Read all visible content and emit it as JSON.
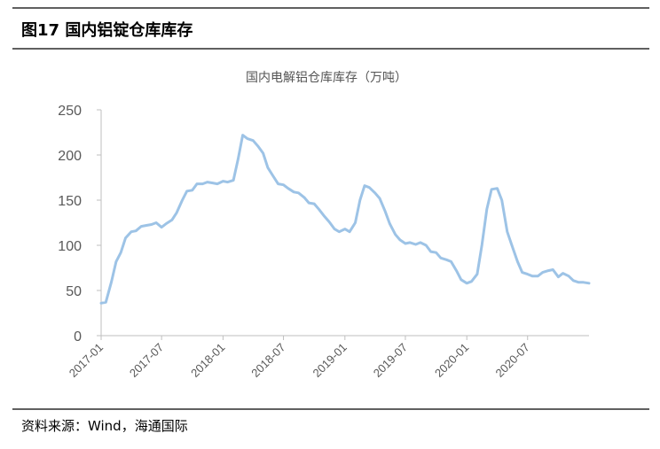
{
  "figure_title": "图17 国内铝锭仓库库存",
  "source_text": "资料来源：Wind，海通国际",
  "chart_data": {
    "type": "line",
    "title": "国内电解铝仓库库存（万吨）",
    "xlabel": "",
    "ylabel": "",
    "ylim": [
      0,
      250
    ],
    "yticks": [
      0,
      50,
      100,
      150,
      200,
      250
    ],
    "xticks": [
      "2017-01",
      "2017-07",
      "2018-01",
      "2018-07",
      "2019-01",
      "2019-07",
      "2020-01",
      "2020-07"
    ],
    "grid": false,
    "legend": "none",
    "line_color": "#9DC3E6",
    "series": [
      {
        "name": "",
        "points": [
          [
            "2017-01",
            36
          ],
          [
            "2017-01-15",
            37
          ],
          [
            "2017-02",
            60
          ],
          [
            "2017-02-15",
            82
          ],
          [
            "2017-03",
            92
          ],
          [
            "2017-03-15",
            108
          ],
          [
            "2017-04",
            115
          ],
          [
            "2017-04-15",
            116
          ],
          [
            "2017-05",
            121
          ],
          [
            "2017-05-15",
            122
          ],
          [
            "2017-06",
            123
          ],
          [
            "2017-06-15",
            125
          ],
          [
            "2017-07",
            120
          ],
          [
            "2017-07-15",
            124
          ],
          [
            "2017-08",
            128
          ],
          [
            "2017-08-15",
            136
          ],
          [
            "2017-09",
            150
          ],
          [
            "2017-09-15",
            160
          ],
          [
            "2017-10",
            161
          ],
          [
            "2017-10-15",
            168
          ],
          [
            "2017-11",
            168
          ],
          [
            "2017-11-15",
            170
          ],
          [
            "2017-12",
            169
          ],
          [
            "2017-12-15",
            168
          ],
          [
            "2018-01",
            171
          ],
          [
            "2018-01-15",
            170
          ],
          [
            "2018-02",
            172
          ],
          [
            "2018-02-15",
            195
          ],
          [
            "2018-03",
            222
          ],
          [
            "2018-03-15",
            218
          ],
          [
            "2018-04",
            216
          ],
          [
            "2018-04-15",
            210
          ],
          [
            "2018-05",
            202
          ],
          [
            "2018-05-15",
            186
          ],
          [
            "2018-06",
            176
          ],
          [
            "2018-06-15",
            168
          ],
          [
            "2018-07",
            167
          ],
          [
            "2018-07-15",
            163
          ],
          [
            "2018-08",
            159
          ],
          [
            "2018-08-15",
            158
          ],
          [
            "2018-09",
            153
          ],
          [
            "2018-09-15",
            147
          ],
          [
            "2018-10",
            146
          ],
          [
            "2018-10-15",
            140
          ],
          [
            "2018-11",
            132
          ],
          [
            "2018-11-15",
            126
          ],
          [
            "2018-12",
            118
          ],
          [
            "2018-12-15",
            115
          ],
          [
            "2019-01",
            118
          ],
          [
            "2019-01-15",
            115
          ],
          [
            "2019-02",
            125
          ],
          [
            "2019-02-15",
            150
          ],
          [
            "2019-03",
            166
          ],
          [
            "2019-03-15",
            164
          ],
          [
            "2019-04",
            158
          ],
          [
            "2019-04-15",
            152
          ],
          [
            "2019-05",
            138
          ],
          [
            "2019-05-15",
            124
          ],
          [
            "2019-06",
            112
          ],
          [
            "2019-06-15",
            106
          ],
          [
            "2019-07",
            102
          ],
          [
            "2019-07-15",
            103
          ],
          [
            "2019-08",
            101
          ],
          [
            "2019-08-15",
            103
          ],
          [
            "2019-09",
            100
          ],
          [
            "2019-09-15",
            93
          ],
          [
            "2019-10",
            92
          ],
          [
            "2019-10-15",
            86
          ],
          [
            "2019-11",
            84
          ],
          [
            "2019-11-15",
            82
          ],
          [
            "2019-12",
            72
          ],
          [
            "2019-12-15",
            62
          ],
          [
            "2020-01",
            58
          ],
          [
            "2020-01-15",
            60
          ],
          [
            "2020-02",
            68
          ],
          [
            "2020-02-15",
            100
          ],
          [
            "2020-03",
            140
          ],
          [
            "2020-03-15",
            162
          ],
          [
            "2020-04",
            163
          ],
          [
            "2020-04-15",
            150
          ],
          [
            "2020-05",
            115
          ],
          [
            "2020-05-15",
            100
          ],
          [
            "2020-06",
            82
          ],
          [
            "2020-06-15",
            70
          ],
          [
            "2020-07",
            68
          ],
          [
            "2020-07-15",
            66
          ],
          [
            "2020-08",
            66
          ],
          [
            "2020-08-15",
            70
          ],
          [
            "2020-09",
            72
          ],
          [
            "2020-09-15",
            73
          ],
          [
            "2020-10",
            65
          ],
          [
            "2020-10-15",
            69
          ],
          [
            "2020-11",
            66
          ],
          [
            "2020-11-15",
            61
          ],
          [
            "2020-12",
            59
          ],
          [
            "2020-12-15",
            59
          ],
          [
            "2021-01",
            58
          ]
        ]
      }
    ]
  }
}
